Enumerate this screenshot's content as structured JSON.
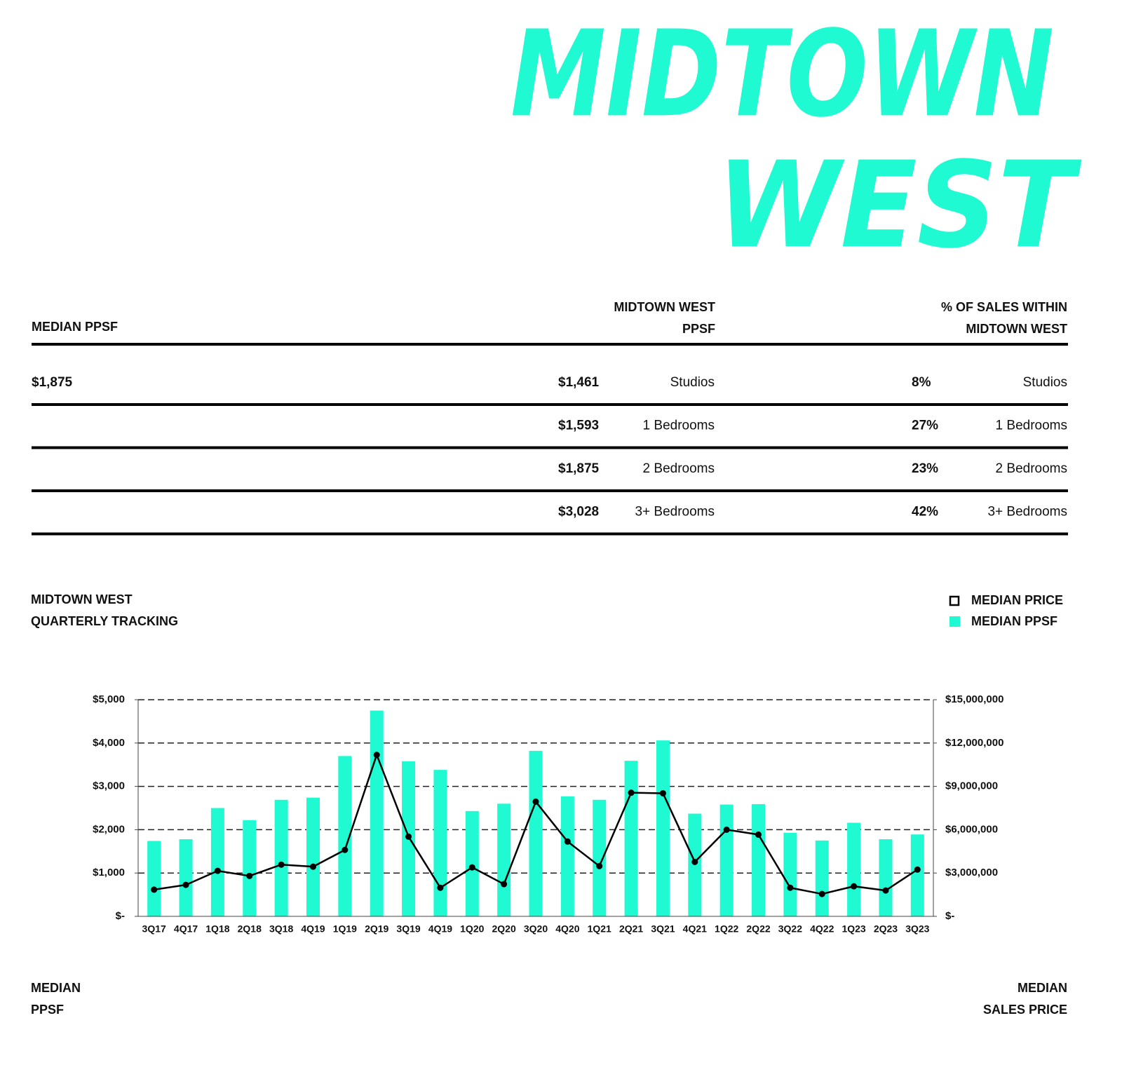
{
  "header": {
    "title_lines": [
      "MIDTOWN",
      "WEST"
    ]
  },
  "table": {
    "headers": [
      [
        "MEDIAN PPSF"
      ],
      [
        "MIDTOWN WEST",
        "PPSF"
      ],
      [
        "% OF SALES WITHIN",
        "MIDTOWN WEST"
      ]
    ],
    "left_value": "$1,875",
    "rows": [
      [
        "$1,461",
        "Studios",
        "8%",
        "Studios"
      ],
      [
        "$1,593",
        "1 Bedrooms",
        "27%",
        "1 Bedrooms"
      ],
      [
        "$1,875",
        "2 Bedrooms",
        "23%",
        "2 Bedrooms"
      ],
      [
        "$3,028",
        "3+ Bedrooms",
        "42%",
        "3+ Bedrooms"
      ]
    ]
  },
  "chart_data": {
    "type": "bar",
    "title_lines": [
      "MIDTOWN WEST",
      "QUARTERLY TRACKING"
    ],
    "y_label_lines": [
      "MEDIAN",
      "PPSF"
    ],
    "y2_label_lines": [
      "MEDIAN",
      "SALES PRICE"
    ],
    "categories": [
      "3Q17",
      "4Q17",
      "1Q18",
      "2Q18",
      "3Q18",
      "4Q19",
      "1Q19",
      "2Q19",
      "3Q19",
      "4Q19",
      "1Q20",
      "2Q20",
      "3Q20",
      "4Q20",
      "1Q21",
      "2Q21",
      "3Q21",
      "4Q21",
      "1Q22",
      "2Q22",
      "3Q22",
      "4Q22",
      "1Q23",
      "2Q23",
      "3Q23"
    ],
    "series": [
      {
        "name": "MEDIAN PRICE",
        "type": "line",
        "axis": "y2",
        "color": "#000000",
        "values": [
          1850000,
          2180000,
          3150000,
          2800000,
          3580000,
          3440000,
          4600000,
          11180000,
          5520000,
          1980000,
          3390000,
          2230000,
          7940000,
          5180000,
          3480000,
          8560000,
          8520000,
          3770000,
          6000000,
          5660000,
          1980000,
          1550000,
          2080000,
          1790000,
          3240000
        ]
      },
      {
        "name": "MEDIAN PPSF",
        "type": "bar",
        "axis": "y",
        "color": "#1ffad3",
        "values": [
          1740,
          1780,
          2500,
          2220,
          2690,
          2740,
          3700,
          4750,
          3580,
          3380,
          2430,
          2600,
          3820,
          2770,
          2690,
          3590,
          4060,
          2370,
          2580,
          2590,
          1930,
          1750,
          2160,
          1780,
          1890
        ]
      }
    ],
    "ylim": [
      0,
      5000
    ],
    "yticks": [
      {
        "value": 0,
        "label": "$-"
      },
      {
        "value": 1000,
        "label": "$1,000"
      },
      {
        "value": 2000,
        "label": "$2,000"
      },
      {
        "value": 3000,
        "label": "$3,000"
      },
      {
        "value": 4000,
        "label": "$4,000"
      },
      {
        "value": 5000,
        "label": "$5,000"
      }
    ],
    "y2lim": [
      0,
      15000000
    ],
    "y2ticks": [
      {
        "value": 0,
        "label": "$-"
      },
      {
        "value": 3000000,
        "label": "$3,000,000"
      },
      {
        "value": 6000000,
        "label": "$6,000,000"
      },
      {
        "value": 9000000,
        "label": "$9,000,000"
      },
      {
        "value": 12000000,
        "label": "$12,000,000"
      },
      {
        "value": 15000000,
        "label": "$15,000,000"
      }
    ],
    "grid": true,
    "legend": "top-right"
  }
}
